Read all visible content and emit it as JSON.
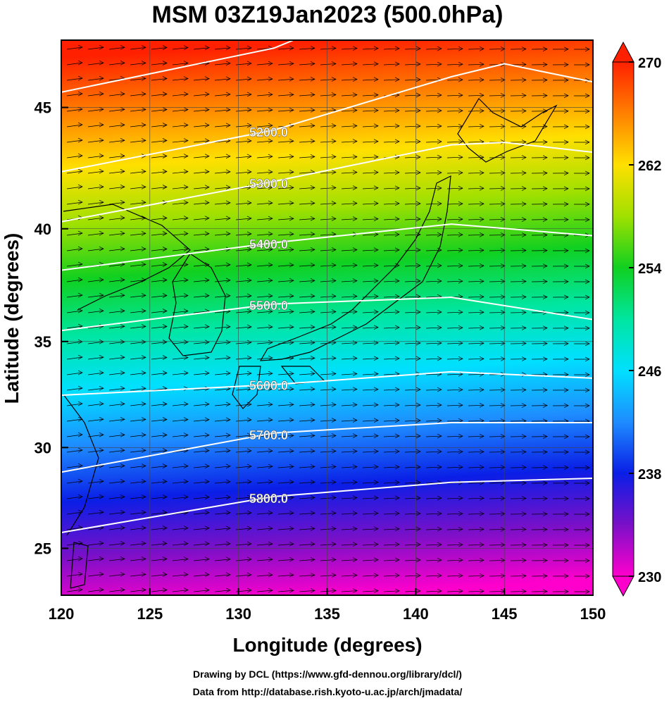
{
  "chart_data": {
    "type": "map",
    "title": "MSM 03Z19Jan2023 (500.0hPa)",
    "x_label": "Longitude (degrees)",
    "y_label": "Latitude  (degrees)",
    "projection": "mercator",
    "xlim": [
      120,
      150
    ],
    "ylim": [
      22.6,
      47.6
    ],
    "xticks": [
      120,
      125,
      130,
      135,
      140,
      145,
      150
    ],
    "yticks": [
      25,
      30,
      35,
      40,
      45
    ],
    "grid": true,
    "colormap": [
      "#ff00cc",
      "#7a10c8",
      "#0a1ee6",
      "#1e8cff",
      "#00e0ff",
      "#00e6a0",
      "#10d020",
      "#a0e000",
      "#ffe000",
      "#ff8000",
      "#ff2000"
    ],
    "colorbar": {
      "lim": [
        230,
        270
      ],
      "ticks": [
        230,
        238,
        246,
        254,
        262,
        270
      ]
    },
    "contour_color": "#ffffff",
    "contours": [
      {
        "lon": [
          120,
          132,
          133.1
        ],
        "lat": [
          45.6,
          47.3,
          47.6
        ]
      },
      {
        "level": {
          "value": 5200,
          "label": "5200.0"
        },
        "lon": [
          120,
          132,
          142,
          145,
          150
        ],
        "lat": [
          42.4,
          44.1,
          46.2,
          46.7,
          46.0
        ]
      },
      {
        "level": {
          "value": 5300,
          "label": "5300.0"
        },
        "lon": [
          120,
          132,
          142,
          145,
          150
        ],
        "lat": [
          40.3,
          42.0,
          43.5,
          43.6,
          43.2
        ]
      },
      {
        "level": {
          "value": 5400,
          "label": "5400.0"
        },
        "lon": [
          120,
          132,
          142,
          150
        ],
        "lat": [
          38.2,
          39.4,
          40.2,
          39.7
        ]
      },
      {
        "level": {
          "value": 5500,
          "label": "5500.0"
        },
        "lon": [
          120,
          132,
          142,
          150
        ],
        "lat": [
          35.5,
          36.7,
          37.0,
          36.0
        ]
      },
      {
        "level": {
          "value": 5600,
          "label": "5600.0"
        },
        "lon": [
          120,
          132,
          142,
          150
        ],
        "lat": [
          32.5,
          33.0,
          33.6,
          33.3
        ]
      },
      {
        "level": {
          "value": 5700,
          "label": "5700.0"
        },
        "lon": [
          120,
          132,
          142,
          150
        ],
        "lat": [
          28.8,
          30.7,
          31.2,
          31.2
        ]
      },
      {
        "level": {
          "value": 5800,
          "label": "5800.0"
        },
        "lon": [
          120,
          132,
          142,
          150
        ],
        "lat": [
          25.8,
          27.6,
          28.3,
          28.5
        ]
      }
    ],
    "footer": [
      "Drawing by DCL (https://www.gfd-dennou.org/library/dcl/)",
      "Data from http://database.rish.kyoto-u.ac.jp/arch/jmadata/"
    ]
  }
}
